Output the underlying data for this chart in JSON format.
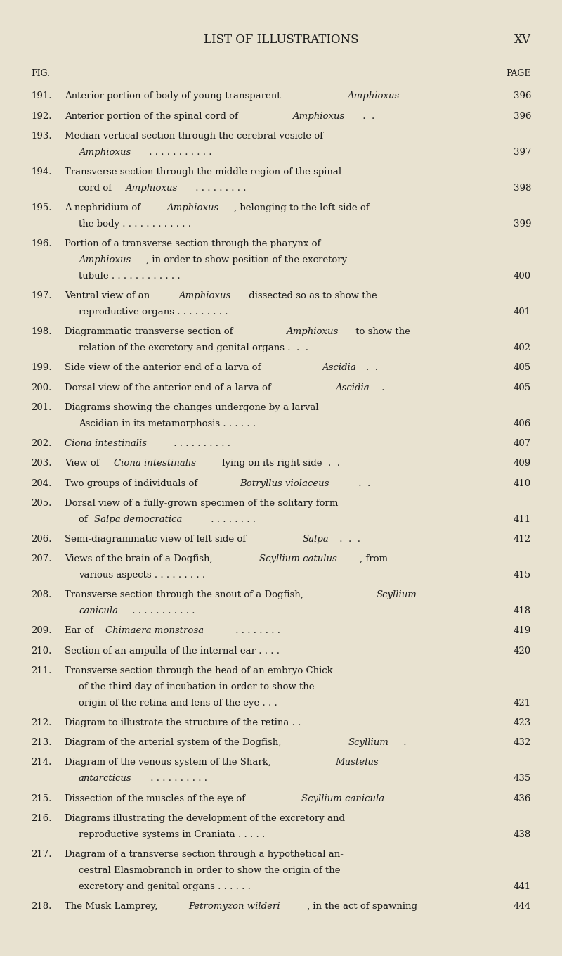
{
  "background_color": "#e8e2d0",
  "page_title": "LIST OF ILLUSTRATIONS",
  "page_num": "XV",
  "fig_label": "FIG.",
  "page_label": "PAGE",
  "title_fontsize": 12,
  "header_fontsize": 9,
  "body_fontsize": 9.5,
  "text_color": "#1a1a1a",
  "entries": [
    {
      "num": "191.",
      "line1": "Anterior portion of body of young transparent ",
      "line1_italic": "Amphioxus",
      "line1_after": "",
      "line2": null,
      "line2_italic": null,
      "line2_after": null,
      "line3": null,
      "line3_italic": null,
      "line3_after": null,
      "page": "396"
    },
    {
      "num": "192.",
      "line1": "Anterior portion of the spinal cord of ",
      "line1_italic": "Amphioxus",
      "line1_after": " .  .",
      "line2": null,
      "line2_italic": null,
      "line2_after": null,
      "line3": null,
      "line3_italic": null,
      "line3_after": null,
      "page": "396"
    },
    {
      "num": "193.",
      "line1": "Median vertical section through the cerebral vesicle of",
      "line1_italic": null,
      "line1_after": null,
      "line2": "",
      "line2_italic": "Amphioxus",
      "line2_after": " . . . . . . . . . . .",
      "line3": null,
      "line3_italic": null,
      "line3_after": null,
      "page": "397"
    },
    {
      "num": "194.",
      "line1": "Transverse section through the middle region of the spinal",
      "line1_italic": null,
      "line1_after": null,
      "line2": "cord of ",
      "line2_italic": "Amphioxus",
      "line2_after": " . . . . . . . . .",
      "line3": null,
      "line3_italic": null,
      "line3_after": null,
      "page": "398"
    },
    {
      "num": "195.",
      "line1": "A nephridium of ",
      "line1_italic": "Amphioxus",
      "line1_after": ", belonging to the left side of",
      "line2": "the body . . . . . . . . . . . .",
      "line2_italic": null,
      "line2_after": null,
      "line3": null,
      "line3_italic": null,
      "line3_after": null,
      "page": "399"
    },
    {
      "num": "196.",
      "line1": "Portion of a transverse section through the pharynx of",
      "line1_italic": null,
      "line1_after": null,
      "line2": "",
      "line2_italic": "Amphioxus",
      "line2_after": ", in order to show position of the excretory",
      "line3": "tubule . . . . . . . . . . . .",
      "line3_italic": null,
      "line3_after": null,
      "page": "400"
    },
    {
      "num": "197.",
      "line1": "Ventral view of an ",
      "line1_italic": "Amphioxus",
      "line1_after": " dissected so as to show the",
      "line2": "reproductive organs . . . . . . . . .",
      "line2_italic": null,
      "line2_after": null,
      "line3": null,
      "line3_italic": null,
      "line3_after": null,
      "page": "401"
    },
    {
      "num": "198.",
      "line1": "Diagrammatic transverse section of ",
      "line1_italic": "Amphioxus",
      "line1_after": " to show the",
      "line2": "relation of the excretory and genital organs .  .  .",
      "line2_italic": null,
      "line2_after": null,
      "line3": null,
      "line3_italic": null,
      "line3_after": null,
      "page": "402"
    },
    {
      "num": "199.",
      "line1": "Side view of the anterior end of a larva of ",
      "line1_italic": "Ascidia",
      "line1_after": ".  .",
      "line2": null,
      "line2_italic": null,
      "line2_after": null,
      "line3": null,
      "line3_italic": null,
      "line3_after": null,
      "page": "405"
    },
    {
      "num": "200.",
      "line1": "Dorsal view of the anterior end of a larva of ",
      "line1_italic": "Ascidia",
      "line1_after": " .",
      "line2": null,
      "line2_italic": null,
      "line2_after": null,
      "line3": null,
      "line3_italic": null,
      "line3_after": null,
      "page": "405"
    },
    {
      "num": "201.",
      "line1": "Diagrams showing the changes undergone by a larval",
      "line1_italic": null,
      "line1_after": null,
      "line2": "Ascidian in its metamorphosis . . . . . .",
      "line2_italic": null,
      "line2_after": null,
      "line3": null,
      "line3_italic": null,
      "line3_after": null,
      "page": "406"
    },
    {
      "num": "202.",
      "line1": "",
      "line1_italic": "Ciona intestinalis",
      "line1_after": " . . . . . . . . . .",
      "line2": null,
      "line2_italic": null,
      "line2_after": null,
      "line3": null,
      "line3_italic": null,
      "line3_after": null,
      "page": "407"
    },
    {
      "num": "203.",
      "line1": "View of ",
      "line1_italic": "Ciona intestinalis",
      "line1_after": " lying on its right side  .  .",
      "line2": null,
      "line2_italic": null,
      "line2_after": null,
      "line3": null,
      "line3_italic": null,
      "line3_after": null,
      "page": "409"
    },
    {
      "num": "204.",
      "line1": "Two groups of individuals of ",
      "line1_italic": "Botryllus violaceus",
      "line1_after": " .  .",
      "line2": null,
      "line2_italic": null,
      "line2_after": null,
      "line3": null,
      "line3_italic": null,
      "line3_after": null,
      "page": "410"
    },
    {
      "num": "205.",
      "line1": "Dorsal view of a fully-grown specimen of the solitary form",
      "line1_italic": null,
      "line1_after": null,
      "line2": "of ",
      "line2_italic": "Salpa democratica",
      "line2_after": " . . . . . . . .",
      "line3": null,
      "line3_italic": null,
      "line3_after": null,
      "page": "411"
    },
    {
      "num": "206.",
      "line1": "Semi-diagrammatic view of left side of ",
      "line1_italic": "Salpa",
      "line1_after": " .  .  .",
      "line2": null,
      "line2_italic": null,
      "line2_after": null,
      "line3": null,
      "line3_italic": null,
      "line3_after": null,
      "page": "412"
    },
    {
      "num": "207.",
      "line1": "Views of the brain of a Dogfish, ",
      "line1_italic": "Scyllium catulus",
      "line1_after": ", from",
      "line2": "various aspects . . . . . . . . .",
      "line2_italic": null,
      "line2_after": null,
      "line3": null,
      "line3_italic": null,
      "line3_after": null,
      "page": "415"
    },
    {
      "num": "208.",
      "line1": "Transverse section through the snout of a Dogfish, ",
      "line1_italic": "Scyllium",
      "line1_after": "",
      "line2": "",
      "line2_italic": "canicula",
      "line2_after": " . . . . . . . . . . .",
      "line3": null,
      "line3_italic": null,
      "line3_after": null,
      "page": "418"
    },
    {
      "num": "209.",
      "line1": "Ear of ",
      "line1_italic": "Chimaera monstrosa",
      "line1_after": " . . . . . . . .",
      "line2": null,
      "line2_italic": null,
      "line2_after": null,
      "line3": null,
      "line3_italic": null,
      "line3_after": null,
      "page": "419"
    },
    {
      "num": "210.",
      "line1": "Section of an ampulla of the internal ear . . . .",
      "line1_italic": null,
      "line1_after": null,
      "line2": null,
      "line2_italic": null,
      "line2_after": null,
      "line3": null,
      "line3_italic": null,
      "line3_after": null,
      "page": "420"
    },
    {
      "num": "211.",
      "line1": "Transverse section through the head of an embryo Chick",
      "line1_italic": null,
      "line1_after": null,
      "line2": "of the third day of incubation in order to show the",
      "line2_italic": null,
      "line2_after": null,
      "line3": "origin of the retina and lens of the eye . . .",
      "line3_italic": null,
      "line3_after": null,
      "page": "421"
    },
    {
      "num": "212.",
      "line1": "Diagram to illustrate the structure of the retina . .",
      "line1_italic": null,
      "line1_after": null,
      "line2": null,
      "line2_italic": null,
      "line2_after": null,
      "line3": null,
      "line3_italic": null,
      "line3_after": null,
      "page": "423"
    },
    {
      "num": "213.",
      "line1": "Diagram of the arterial system of the Dogfish, ",
      "line1_italic": "Scyllium",
      "line1_after": " .",
      "line2": null,
      "line2_italic": null,
      "line2_after": null,
      "line3": null,
      "line3_italic": null,
      "line3_after": null,
      "page": "432"
    },
    {
      "num": "214.",
      "line1": "Diagram of the venous system of the Shark, ",
      "line1_italic": "Mustelus",
      "line1_after": "",
      "line2": "",
      "line2_italic": "antarcticus",
      "line2_after": " . . . . . . . . . .",
      "line3": null,
      "line3_italic": null,
      "line3_after": null,
      "page": "435"
    },
    {
      "num": "215.",
      "line1": "Dissection of the muscles of the eye of ",
      "line1_italic": "Scyllium canicula",
      "line1_after": "",
      "line2": null,
      "line2_italic": null,
      "line2_after": null,
      "line3": null,
      "line3_italic": null,
      "line3_after": null,
      "page": "436"
    },
    {
      "num": "216.",
      "line1": "Diagrams illustrating the development of the excretory and",
      "line1_italic": null,
      "line1_after": null,
      "line2": "reproductive systems in Craniata . . . . .",
      "line2_italic": null,
      "line2_after": null,
      "line3": null,
      "line3_italic": null,
      "line3_after": null,
      "page": "438"
    },
    {
      "num": "217.",
      "line1": "Diagram of a transverse section through a hypothetical an-",
      "line1_italic": null,
      "line1_after": null,
      "line2": "cestral Elasmobranch in order to show the origin of the",
      "line2_italic": null,
      "line2_after": null,
      "line3": "excretory and genital organs . . . . . .",
      "line3_italic": null,
      "line3_after": null,
      "page": "441"
    },
    {
      "num": "218.",
      "line1": "The Musk Lamprey, ",
      "line1_italic": "Petromyzon wilderi",
      "line1_after": ", in the act of spawning",
      "line2": null,
      "line2_italic": null,
      "line2_after": null,
      "line3": null,
      "line3_italic": null,
      "line3_after": null,
      "page": "444"
    }
  ]
}
